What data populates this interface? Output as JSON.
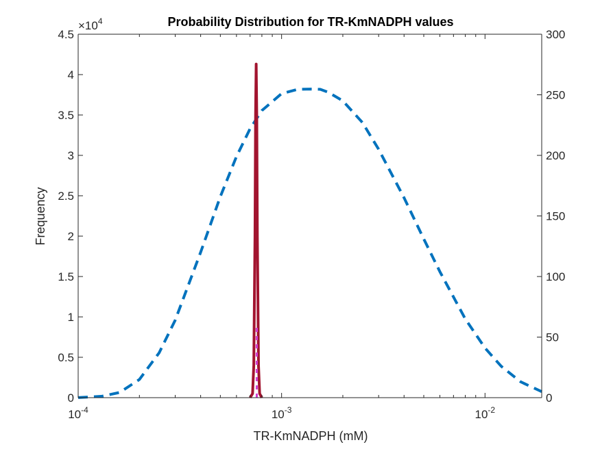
{
  "chart_data": {
    "type": "line",
    "title": "Probability Distribution for TR-KmNADPH values",
    "xlabel": "TR-KmNADPH (mM)",
    "ylabel": "Frequency",
    "x_scale": "log",
    "xlim": [
      0.0001,
      0.019
    ],
    "ylim_left": [
      0,
      45000
    ],
    "ylim_right": [
      0,
      300
    ],
    "left_exponent_label": "×10",
    "left_exponent_power": "4",
    "x_ticks": [
      {
        "value": 0.0001,
        "base": "10",
        "power": "-4"
      },
      {
        "value": 0.001,
        "base": "10",
        "power": "-3"
      },
      {
        "value": 0.01,
        "base": "10",
        "power": "-2"
      }
    ],
    "left_ticks": [
      {
        "value": 0,
        "label": "0"
      },
      {
        "value": 5000,
        "label": "0.5"
      },
      {
        "value": 10000,
        "label": "1"
      },
      {
        "value": 15000,
        "label": "1.5"
      },
      {
        "value": 20000,
        "label": "2"
      },
      {
        "value": 25000,
        "label": "2.5"
      },
      {
        "value": 30000,
        "label": "3"
      },
      {
        "value": 35000,
        "label": "3.5"
      },
      {
        "value": 40000,
        "label": "4"
      },
      {
        "value": 45000,
        "label": "4.5"
      }
    ],
    "right_ticks": [
      {
        "value": 0,
        "label": "0"
      },
      {
        "value": 50,
        "label": "50"
      },
      {
        "value": 100,
        "label": "100"
      },
      {
        "value": 150,
        "label": "150"
      },
      {
        "value": 200,
        "label": "200"
      },
      {
        "value": 250,
        "label": "250"
      },
      {
        "value": 300,
        "label": "300"
      }
    ],
    "series": [
      {
        "axis": "right",
        "style": "dashed",
        "color": "#0072BD",
        "x": [
          0.0001,
          0.00013,
          0.00016,
          0.0002,
          0.00025,
          0.0003,
          0.0004,
          0.0005,
          0.0006,
          0.0007,
          0.0008,
          0.001,
          0.0012,
          0.0014,
          0.00155,
          0.0017,
          0.002,
          0.0025,
          0.003,
          0.004,
          0.005,
          0.006,
          0.008,
          0.01,
          0.012,
          0.015,
          0.019
        ],
        "y": [
          0.1,
          1.1,
          4.3,
          15,
          37,
          64,
          120,
          166,
          199,
          222,
          237,
          251,
          254.5,
          254.7,
          254.5,
          252,
          245,
          227,
          205,
          165,
          131,
          104,
          65,
          41,
          26,
          13,
          5
        ]
      },
      {
        "axis": "left",
        "style": "solid",
        "color": "#A2142F",
        "x": [
          0.0007,
          0.00072,
          0.00073,
          0.00074,
          0.000745,
          0.00075,
          0.000755,
          0.00076,
          0.00077,
          0.00078,
          0.0008
        ],
        "y": [
          0,
          500,
          4000,
          20000,
          35000,
          41300,
          35000,
          20000,
          4000,
          500,
          0
        ]
      },
      {
        "axis": "left",
        "style": "dashed",
        "color": "#D03FD0",
        "x": [
          0.000755,
          0.000755
        ],
        "y": [
          0,
          9000
        ]
      }
    ]
  }
}
